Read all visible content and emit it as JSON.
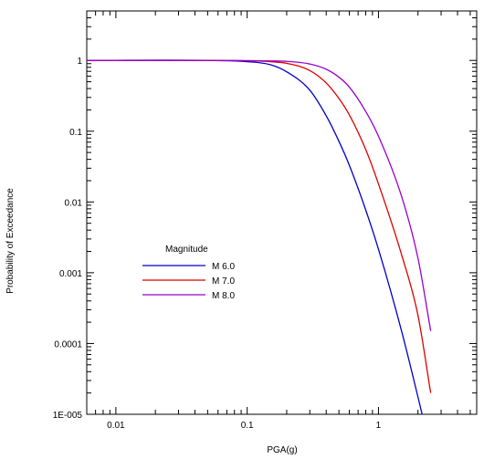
{
  "chart_data": {
    "type": "line",
    "xlabel": "PGA(g)",
    "ylabel": "Probability of Exceedance",
    "xscale": "log",
    "yscale": "log",
    "xlim": [
      0.006,
      5.6
    ],
    "ylim": [
      1e-05,
      5
    ],
    "x_ticks": [
      {
        "value": 0.01,
        "label": "0.01"
      },
      {
        "value": 0.1,
        "label": "0.1"
      },
      {
        "value": 1,
        "label": "1"
      }
    ],
    "y_ticks": [
      {
        "value": 1,
        "label": "1"
      },
      {
        "value": 0.1,
        "label": "0.1"
      },
      {
        "value": 0.01,
        "label": "0.01"
      },
      {
        "value": 0.001,
        "label": "0.001"
      },
      {
        "value": 0.0001,
        "label": "0.0001"
      },
      {
        "value": 1e-05,
        "label": "1E-005"
      }
    ],
    "grid": false,
    "legend": {
      "title": "Magnitude",
      "placement": "lower-left"
    },
    "series": [
      {
        "name": "M 6.0",
        "color": "#0000cc",
        "points": [
          [
            0.006,
            1
          ],
          [
            0.05,
            0.999
          ],
          [
            0.1,
            0.96
          ],
          [
            0.15,
            0.87
          ],
          [
            0.2,
            0.69
          ],
          [
            0.3,
            0.38
          ],
          [
            0.4,
            0.165
          ],
          [
            0.5,
            0.072
          ],
          [
            0.6,
            0.033
          ],
          [
            0.8,
            0.0077
          ],
          [
            1.0,
            0.00215
          ],
          [
            1.5,
            0.00015
          ],
          [
            2.0,
            1.75e-05
          ],
          [
            2.15,
            1e-05
          ]
        ]
      },
      {
        "name": "M 7.0",
        "color": "#dd0000",
        "points": [
          [
            0.006,
            1
          ],
          [
            0.05,
            0.9995
          ],
          [
            0.1,
            0.988
          ],
          [
            0.15,
            0.96
          ],
          [
            0.2,
            0.91
          ],
          [
            0.3,
            0.72
          ],
          [
            0.4,
            0.48
          ],
          [
            0.5,
            0.29
          ],
          [
            0.6,
            0.17
          ],
          [
            0.8,
            0.055
          ],
          [
            1.0,
            0.018
          ],
          [
            1.5,
            0.0018
          ],
          [
            2.0,
            0.00025
          ],
          [
            2.5,
            2e-05
          ]
        ]
      },
      {
        "name": "M 8.0",
        "color": "#9900cc",
        "points": [
          [
            0.006,
            1
          ],
          [
            0.05,
            0.9998
          ],
          [
            0.1,
            0.995
          ],
          [
            0.15,
            0.985
          ],
          [
            0.2,
            0.97
          ],
          [
            0.3,
            0.89
          ],
          [
            0.4,
            0.75
          ],
          [
            0.5,
            0.58
          ],
          [
            0.6,
            0.42
          ],
          [
            0.8,
            0.19
          ],
          [
            1.0,
            0.085
          ],
          [
            1.5,
            0.012
          ],
          [
            2.0,
            0.0016
          ],
          [
            2.5,
            0.00015
          ]
        ]
      }
    ]
  }
}
